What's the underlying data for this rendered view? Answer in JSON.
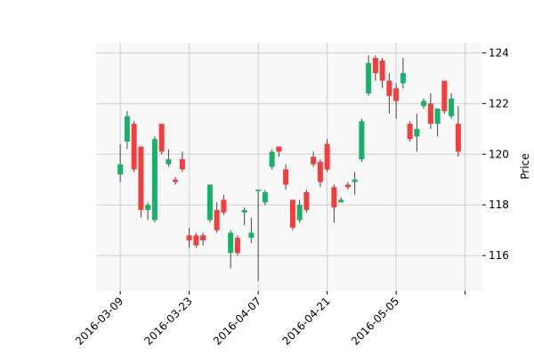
{
  "chart_data": {
    "type": "candlestick",
    "ylabel": "Price",
    "ylim": [
      114.6,
      124.4
    ],
    "y_ticks": [
      116,
      118,
      120,
      122,
      124
    ],
    "y_tick_labels": [
      "116",
      "118",
      "120",
      "122",
      "124"
    ],
    "grid": true,
    "y_axis_side": "right",
    "x_tick_labels": [
      "2016-03-09",
      "2016-03-23",
      "2016-04-07",
      "2016-04-21",
      "2016-05-05",
      ""
    ],
    "x_tick_indices": [
      0,
      10,
      20,
      30,
      40,
      50
    ],
    "xlim": [
      -3.5,
      52.5
    ],
    "colors": {
      "up": "#17b26a",
      "down": "#f53d3d",
      "wick": "#444444",
      "grid": "#d0d0d0",
      "plot_bg": "#f8f8f8"
    },
    "candles": [
      {
        "i": 0,
        "open": 119.2,
        "high": 120.4,
        "low": 118.9,
        "close": 119.6
      },
      {
        "i": 1,
        "open": 120.5,
        "high": 121.7,
        "low": 120.2,
        "close": 121.5
      },
      {
        "i": 2,
        "open": 121.2,
        "high": 121.3,
        "low": 119.3,
        "close": 119.4
      },
      {
        "i": 3,
        "open": 120.3,
        "high": 120.3,
        "low": 117.5,
        "close": 117.8
      },
      {
        "i": 4,
        "open": 117.8,
        "high": 118.1,
        "low": 117.4,
        "close": 118.0
      },
      {
        "i": 5,
        "open": 117.4,
        "high": 120.7,
        "low": 117.3,
        "close": 120.6
      },
      {
        "i": 6,
        "open": 121.2,
        "high": 121.2,
        "low": 120.0,
        "close": 120.1
      },
      {
        "i": 7,
        "open": 119.6,
        "high": 120.2,
        "low": 119.5,
        "close": 119.8
      },
      {
        "i": 8,
        "open": 119.0,
        "high": 119.1,
        "low": 118.8,
        "close": 118.9
      },
      {
        "i": 9,
        "open": 119.8,
        "high": 120.1,
        "low": 119.3,
        "close": 119.4
      },
      {
        "i": 10,
        "open": 116.8,
        "high": 117.1,
        "low": 116.3,
        "close": 116.6
      },
      {
        "i": 11,
        "open": 116.8,
        "high": 116.9,
        "low": 116.3,
        "close": 116.4
      },
      {
        "i": 12,
        "open": 116.8,
        "high": 116.9,
        "low": 116.4,
        "close": 116.6
      },
      {
        "i": 13,
        "open": 117.4,
        "high": 118.8,
        "low": 117.3,
        "close": 118.8
      },
      {
        "i": 14,
        "open": 117.8,
        "high": 118.1,
        "low": 116.9,
        "close": 117.0
      },
      {
        "i": 15,
        "open": 118.2,
        "high": 118.4,
        "low": 117.6,
        "close": 117.7
      },
      {
        "i": 16,
        "open": 116.1,
        "high": 117.0,
        "low": 115.5,
        "close": 116.9
      },
      {
        "i": 17,
        "open": 116.7,
        "high": 116.8,
        "low": 116.0,
        "close": 116.1
      },
      {
        "i": 18,
        "open": 117.7,
        "high": 117.9,
        "low": 117.2,
        "close": 117.8
      },
      {
        "i": 19,
        "open": 116.7,
        "high": 117.5,
        "low": 116.5,
        "close": 116.9
      },
      {
        "i": 20,
        "open": 118.6,
        "high": 118.6,
        "low": 115.0,
        "close": 118.6
      },
      {
        "i": 21,
        "open": 118.1,
        "high": 118.6,
        "low": 118.0,
        "close": 118.5
      },
      {
        "i": 22,
        "open": 119.5,
        "high": 120.2,
        "low": 119.4,
        "close": 120.1
      },
      {
        "i": 23,
        "open": 120.3,
        "high": 120.3,
        "low": 119.9,
        "close": 120.1
      },
      {
        "i": 24,
        "open": 119.4,
        "high": 119.6,
        "low": 118.6,
        "close": 118.8
      },
      {
        "i": 25,
        "open": 118.2,
        "high": 118.2,
        "low": 117.0,
        "close": 117.1
      },
      {
        "i": 26,
        "open": 117.4,
        "high": 118.2,
        "low": 117.3,
        "close": 118.0
      },
      {
        "i": 27,
        "open": 118.5,
        "high": 118.6,
        "low": 117.7,
        "close": 117.8
      },
      {
        "i": 28,
        "open": 119.9,
        "high": 120.1,
        "low": 119.5,
        "close": 119.6
      },
      {
        "i": 29,
        "open": 119.7,
        "high": 119.8,
        "low": 118.7,
        "close": 118.9
      },
      {
        "i": 30,
        "open": 120.4,
        "high": 120.6,
        "low": 119.3,
        "close": 119.4
      },
      {
        "i": 31,
        "open": 118.7,
        "high": 118.8,
        "low": 117.3,
        "close": 117.9
      },
      {
        "i": 32,
        "open": 118.1,
        "high": 118.3,
        "low": 118.1,
        "close": 118.2
      },
      {
        "i": 33,
        "open": 118.8,
        "high": 118.9,
        "low": 118.6,
        "close": 118.7
      },
      {
        "i": 34,
        "open": 118.9,
        "high": 119.3,
        "low": 118.4,
        "close": 119.0
      },
      {
        "i": 35,
        "open": 119.8,
        "high": 121.4,
        "low": 119.7,
        "close": 121.3
      },
      {
        "i": 36,
        "open": 122.4,
        "high": 123.9,
        "low": 122.3,
        "close": 123.6
      },
      {
        "i": 37,
        "open": 123.8,
        "high": 123.9,
        "low": 122.9,
        "close": 123.2
      },
      {
        "i": 38,
        "open": 123.7,
        "high": 123.8,
        "low": 122.6,
        "close": 122.9
      },
      {
        "i": 39,
        "open": 122.9,
        "high": 123.2,
        "low": 121.6,
        "close": 122.3
      },
      {
        "i": 40,
        "open": 122.6,
        "high": 122.8,
        "low": 121.4,
        "close": 122.1
      },
      {
        "i": 41,
        "open": 122.8,
        "high": 123.8,
        "low": 122.6,
        "close": 123.2
      },
      {
        "i": 42,
        "open": 121.2,
        "high": 121.3,
        "low": 120.5,
        "close": 120.6
      },
      {
        "i": 43,
        "open": 120.7,
        "high": 121.6,
        "low": 120.1,
        "close": 121.0
      },
      {
        "i": 44,
        "open": 121.9,
        "high": 122.2,
        "low": 121.8,
        "close": 122.1
      },
      {
        "i": 45,
        "open": 122.0,
        "high": 122.4,
        "low": 121.0,
        "close": 121.2
      },
      {
        "i": 46,
        "open": 121.2,
        "high": 121.8,
        "low": 120.7,
        "close": 121.8
      },
      {
        "i": 47,
        "open": 122.9,
        "high": 122.9,
        "low": 121.6,
        "close": 121.7
      },
      {
        "i": 48,
        "open": 121.5,
        "high": 122.4,
        "low": 121.4,
        "close": 122.2
      },
      {
        "i": 49,
        "open": 121.2,
        "high": 121.9,
        "low": 119.9,
        "close": 120.1
      }
    ]
  }
}
